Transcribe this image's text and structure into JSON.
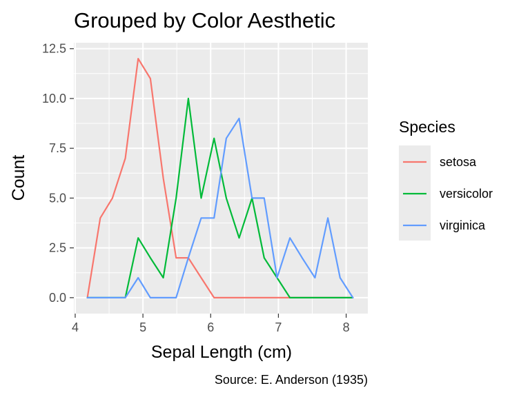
{
  "chart_data": {
    "type": "line",
    "title": "Grouped by Color Aesthetic",
    "xlabel": "Sepal Length (cm)",
    "ylabel": "Count",
    "caption": "Source: E. Anderson (1935)",
    "xlim": [
      3.98,
      8.32
    ],
    "ylim": [
      -0.8,
      12.8
    ],
    "x_ticks": [
      4,
      5,
      6,
      7,
      8
    ],
    "x_tick_labels": [
      "4",
      "5",
      "6",
      "7",
      "8"
    ],
    "y_ticks": [
      0,
      2.5,
      5,
      7.5,
      10,
      12.5
    ],
    "y_tick_labels": [
      "0.0",
      "2.5",
      "5.0",
      "7.5",
      "10.0",
      "12.5"
    ],
    "grid": true,
    "legend": {
      "title": "Species",
      "position": "right"
    },
    "series": [
      {
        "name": "setosa",
        "color": "#F8766D",
        "x": [
          4.18,
          4.37,
          4.55,
          4.74,
          4.93,
          5.11,
          5.3,
          5.49,
          5.67,
          5.86,
          6.05,
          6.23,
          6.42,
          6.61,
          6.79,
          6.98,
          7.17,
          7.35,
          7.54,
          7.73,
          7.91,
          8.1
        ],
        "y": [
          0,
          4,
          5,
          7,
          12,
          11,
          6,
          2,
          2,
          1,
          0,
          0,
          0,
          0,
          0,
          0,
          0,
          0,
          0,
          0,
          0,
          0
        ]
      },
      {
        "name": "versicolor",
        "color": "#00BA38",
        "x": [
          4.18,
          4.37,
          4.55,
          4.74,
          4.93,
          5.11,
          5.3,
          5.49,
          5.67,
          5.86,
          6.05,
          6.23,
          6.42,
          6.61,
          6.79,
          6.98,
          7.17,
          7.35,
          7.54,
          7.73,
          7.91,
          8.1
        ],
        "y": [
          0,
          0,
          0,
          0,
          3,
          2,
          1,
          5,
          10,
          5,
          8,
          5,
          3,
          5,
          2,
          1,
          0,
          0,
          0,
          0,
          0,
          0
        ]
      },
      {
        "name": "virginica",
        "color": "#619CFF",
        "x": [
          4.18,
          4.37,
          4.55,
          4.74,
          4.93,
          5.11,
          5.3,
          5.49,
          5.67,
          5.86,
          6.05,
          6.23,
          6.42,
          6.61,
          6.79,
          6.98,
          7.17,
          7.35,
          7.54,
          7.73,
          7.91,
          8.1
        ],
        "y": [
          0,
          0,
          0,
          0,
          1,
          0,
          0,
          0,
          2,
          4,
          4,
          8,
          9,
          5,
          5,
          1,
          3,
          2,
          1,
          4,
          1,
          0
        ]
      }
    ]
  }
}
